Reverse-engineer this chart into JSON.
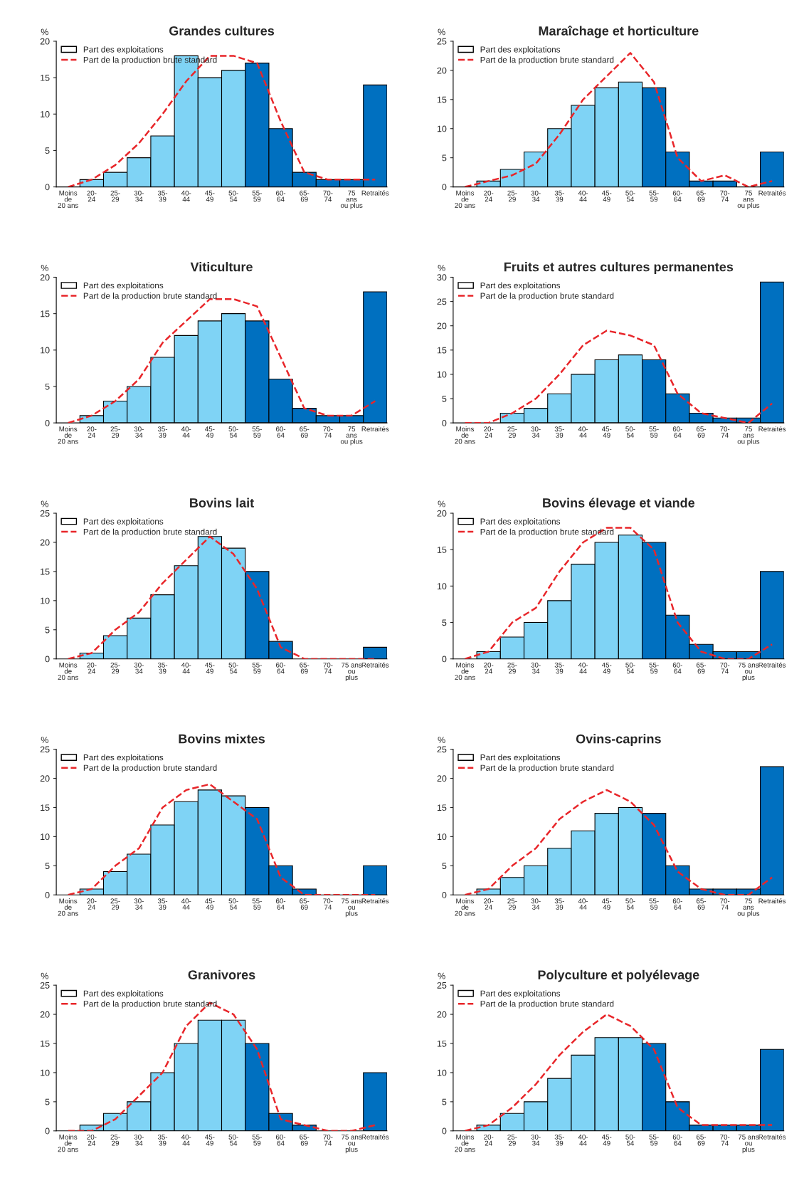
{
  "chart_data": [
    {
      "type": "bar",
      "title": "Grandes cultures",
      "ylabel": "%",
      "ylim": [
        0,
        20
      ],
      "yticks": [
        0,
        5,
        10,
        15,
        20
      ],
      "legend": "top left",
      "grid": false,
      "categories": [
        "Moins\nde\n20 ans",
        "20-\n24",
        "25-\n29",
        "30-\n34",
        "35-\n39",
        "40-\n44",
        "45-\n49",
        "50-\n54",
        "55-\n59",
        "60-\n64",
        "65-\n69",
        "70-\n74",
        "75\nans\nou plus",
        "Retraités"
      ],
      "series": [
        {
          "name": "Part des exploitations",
          "type": "bar",
          "colors": [
            "#7fd3f5",
            "#7fd3f5",
            "#7fd3f5",
            "#7fd3f5",
            "#7fd3f5",
            "#7fd3f5",
            "#7fd3f5",
            "#7fd3f5",
            "#0070c0",
            "#0070c0",
            "#0070c0",
            "#0070c0",
            "#0070c0",
            "#0070c0"
          ],
          "values": [
            0,
            1,
            2,
            4,
            7,
            18,
            15,
            16,
            17,
            8,
            2,
            1,
            1,
            14
          ]
        },
        {
          "name": "Part de la production brute standard",
          "type": "line",
          "color": "#e8262a",
          "line_style": "dashed",
          "values": [
            0,
            1,
            3,
            6,
            10,
            14.5,
            18,
            18,
            17,
            9,
            2,
            1,
            1,
            1
          ]
        }
      ]
    },
    {
      "type": "bar",
      "title": "Maraîchage et horticulture",
      "ylabel": "%",
      "ylim": [
        0,
        25
      ],
      "yticks": [
        0,
        5,
        10,
        15,
        20,
        25
      ],
      "legend": "top left",
      "grid": false,
      "categories": [
        "Moins\nde\n20 ans",
        "20-\n24",
        "25-\n29",
        "30-\n34",
        "35-\n39",
        "40-\n44",
        "45-\n49",
        "50-\n54",
        "55-\n59",
        "60-\n64",
        "65-\n69",
        "70-\n74",
        "75\nans\nou plus",
        "Retraités"
      ],
      "series": [
        {
          "name": "Part des exploitations",
          "type": "bar",
          "colors": [
            "#7fd3f5",
            "#7fd3f5",
            "#7fd3f5",
            "#7fd3f5",
            "#7fd3f5",
            "#7fd3f5",
            "#7fd3f5",
            "#7fd3f5",
            "#0070c0",
            "#0070c0",
            "#0070c0",
            "#0070c0",
            "#0070c0",
            "#0070c0"
          ],
          "values": [
            0,
            1,
            3,
            6,
            10,
            14,
            17,
            18,
            17,
            6,
            1,
            1,
            0,
            6
          ]
        },
        {
          "name": "Part de la production brute standard",
          "type": "line",
          "color": "#e8262a",
          "line_style": "dashed",
          "values": [
            0,
            1,
            2,
            4,
            9,
            15,
            19,
            23,
            18,
            5,
            1,
            2,
            0,
            1
          ]
        }
      ]
    },
    {
      "type": "bar",
      "title": "Viticulture",
      "ylabel": "%",
      "ylim": [
        0,
        20
      ],
      "yticks": [
        0,
        5,
        10,
        15,
        20
      ],
      "legend": "top left",
      "grid": false,
      "categories": [
        "Moins\nde\n20 ans",
        "20-\n24",
        "25-\n29",
        "30-\n34",
        "35-\n39",
        "40-\n44",
        "45-\n49",
        "50-\n54",
        "55-\n59",
        "60-\n64",
        "65-\n69",
        "70-\n74",
        "75\nans\nou plus",
        "Retraités"
      ],
      "series": [
        {
          "name": "Part des exploitations",
          "type": "bar",
          "colors": [
            "#7fd3f5",
            "#7fd3f5",
            "#7fd3f5",
            "#7fd3f5",
            "#7fd3f5",
            "#7fd3f5",
            "#7fd3f5",
            "#7fd3f5",
            "#0070c0",
            "#0070c0",
            "#0070c0",
            "#0070c0",
            "#0070c0",
            "#0070c0"
          ],
          "values": [
            0,
            1,
            3,
            5,
            9,
            12,
            14,
            15,
            14,
            6,
            2,
            1,
            1,
            18
          ]
        },
        {
          "name": "Part de la production brute standard",
          "type": "line",
          "color": "#e8262a",
          "line_style": "dashed",
          "values": [
            0,
            1,
            3,
            6,
            11,
            14,
            17,
            17,
            16,
            9,
            2,
            1,
            1,
            3
          ]
        }
      ]
    },
    {
      "type": "bar",
      "title": "Fruits et autres cultures permanentes",
      "ylabel": "%",
      "ylim": [
        0,
        30
      ],
      "yticks": [
        0,
        5,
        10,
        15,
        20,
        25,
        30
      ],
      "legend": "top left",
      "grid": false,
      "categories": [
        "Moins\nde\n20 ans",
        "20-\n24",
        "25-\n29",
        "30-\n34",
        "35-\n39",
        "40-\n44",
        "45-\n49",
        "50-\n54",
        "55-\n59",
        "60-\n64",
        "65-\n69",
        "70-\n74",
        "75\nans\nou plus",
        "Retraités"
      ],
      "series": [
        {
          "name": "Part des exploitations",
          "type": "bar",
          "colors": [
            "#7fd3f5",
            "#7fd3f5",
            "#7fd3f5",
            "#7fd3f5",
            "#7fd3f5",
            "#7fd3f5",
            "#7fd3f5",
            "#7fd3f5",
            "#0070c0",
            "#0070c0",
            "#0070c0",
            "#0070c0",
            "#0070c0",
            "#0070c0"
          ],
          "values": [
            0,
            0,
            2,
            3,
            6,
            10,
            13,
            14,
            13,
            6,
            2,
            1,
            1,
            29
          ]
        },
        {
          "name": "Part de la production brute standard",
          "type": "line",
          "color": "#e8262a",
          "line_style": "dashed",
          "values": [
            0,
            0,
            2,
            5,
            10,
            16,
            19,
            18,
            16,
            6,
            2,
            1,
            0,
            4
          ]
        }
      ]
    },
    {
      "type": "bar",
      "title": "Bovins lait",
      "ylabel": "%",
      "ylim": [
        0,
        25
      ],
      "yticks": [
        0,
        5,
        10,
        15,
        20,
        25
      ],
      "legend": "top left",
      "grid": false,
      "categories": [
        "Moins\nde\n20 ans",
        "20-\n24",
        "25-\n29",
        "30-\n34",
        "35-\n39",
        "40-\n44",
        "45-\n49",
        "50-\n54",
        "55-\n59",
        "60-\n64",
        "65-\n69",
        "70-\n74",
        "75 ans\nou\nplus",
        "Retraités"
      ],
      "series": [
        {
          "name": "Part des exploitations",
          "type": "bar",
          "colors": [
            "#7fd3f5",
            "#7fd3f5",
            "#7fd3f5",
            "#7fd3f5",
            "#7fd3f5",
            "#7fd3f5",
            "#7fd3f5",
            "#7fd3f5",
            "#0070c0",
            "#0070c0",
            "#0070c0",
            "#0070c0",
            "#0070c0",
            "#0070c0"
          ],
          "values": [
            0,
            1,
            4,
            7,
            11,
            16,
            21,
            19,
            15,
            3,
            0,
            0,
            0,
            2
          ]
        },
        {
          "name": "Part de la production brute standard",
          "type": "line",
          "color": "#e8262a",
          "line_style": "dashed",
          "values": [
            0,
            1,
            5,
            8,
            13,
            17,
            21,
            18,
            12,
            2,
            0,
            0,
            0,
            0
          ]
        }
      ]
    },
    {
      "type": "bar",
      "title": "Bovins élevage et viande",
      "ylabel": "%",
      "ylim": [
        0,
        20
      ],
      "yticks": [
        0,
        5,
        10,
        15,
        20
      ],
      "legend": "top left",
      "grid": false,
      "categories": [
        "Moins\nde\n20 ans",
        "20-\n24",
        "25-\n29",
        "30-\n34",
        "35-\n39",
        "40-\n44",
        "45-\n49",
        "50-\n54",
        "55-\n59",
        "60-\n64",
        "65-\n69",
        "70-\n74",
        "75 ans\nou\nplus",
        "Retraités"
      ],
      "series": [
        {
          "name": "Part des exploitations",
          "type": "bar",
          "colors": [
            "#7fd3f5",
            "#7fd3f5",
            "#7fd3f5",
            "#7fd3f5",
            "#7fd3f5",
            "#7fd3f5",
            "#7fd3f5",
            "#7fd3f5",
            "#0070c0",
            "#0070c0",
            "#0070c0",
            "#0070c0",
            "#0070c0",
            "#0070c0"
          ],
          "values": [
            0,
            1,
            3,
            5,
            8,
            13,
            16,
            17,
            16,
            6,
            2,
            1,
            1,
            12
          ]
        },
        {
          "name": "Part de la production brute standard",
          "type": "line",
          "color": "#e8262a",
          "line_style": "dashed",
          "values": [
            0,
            1,
            5,
            7,
            12,
            16,
            18,
            18,
            15,
            5,
            1,
            0,
            0,
            2
          ]
        }
      ]
    },
    {
      "type": "bar",
      "title": "Bovins mixtes",
      "ylabel": "%",
      "ylim": [
        0,
        25
      ],
      "yticks": [
        0,
        5,
        10,
        15,
        20,
        25
      ],
      "legend": "top left",
      "grid": false,
      "categories": [
        "Moins\nde\n20 ans",
        "20-\n24",
        "25-\n29",
        "30-\n34",
        "35-\n39",
        "40-\n44",
        "45-\n49",
        "50-\n54",
        "55-\n59",
        "60-\n64",
        "65-\n69",
        "70-\n74",
        "75 ans\nou\nplus",
        "Retraités"
      ],
      "series": [
        {
          "name": "Part des exploitations",
          "type": "bar",
          "colors": [
            "#7fd3f5",
            "#7fd3f5",
            "#7fd3f5",
            "#7fd3f5",
            "#7fd3f5",
            "#7fd3f5",
            "#7fd3f5",
            "#7fd3f5",
            "#0070c0",
            "#0070c0",
            "#0070c0",
            "#0070c0",
            "#0070c0",
            "#0070c0"
          ],
          "values": [
            0,
            1,
            4,
            7,
            12,
            16,
            18,
            17,
            15,
            5,
            1,
            0,
            0,
            5
          ]
        },
        {
          "name": "Part de la production brute standard",
          "type": "line",
          "color": "#e8262a",
          "line_style": "dashed",
          "values": [
            0,
            1,
            5,
            8,
            15,
            18,
            19,
            16,
            13,
            3,
            0,
            0,
            0,
            0
          ]
        }
      ]
    },
    {
      "type": "bar",
      "title": "Ovins-caprins",
      "ylabel": "%",
      "ylim": [
        0,
        25
      ],
      "yticks": [
        0,
        5,
        10,
        15,
        20,
        25
      ],
      "legend": "top left",
      "grid": false,
      "categories": [
        "Moins\nde\n20 ans",
        "20-\n24",
        "25-\n29",
        "30-\n34",
        "35-\n39",
        "40-\n44",
        "45-\n49",
        "50-\n54",
        "55-\n59",
        "60-\n64",
        "65-\n69",
        "70-\n74",
        "75\nans\nou plus",
        "Retraités"
      ],
      "series": [
        {
          "name": "Part des exploitations",
          "type": "bar",
          "colors": [
            "#7fd3f5",
            "#7fd3f5",
            "#7fd3f5",
            "#7fd3f5",
            "#7fd3f5",
            "#7fd3f5",
            "#7fd3f5",
            "#7fd3f5",
            "#0070c0",
            "#0070c0",
            "#0070c0",
            "#0070c0",
            "#0070c0",
            "#0070c0"
          ],
          "values": [
            0,
            1,
            3,
            5,
            8,
            11,
            14,
            15,
            14,
            5,
            1,
            1,
            1,
            22
          ]
        },
        {
          "name": "Part de la production brute standard",
          "type": "line",
          "color": "#e8262a",
          "line_style": "dashed",
          "values": [
            0,
            1,
            5,
            8,
            13,
            16,
            18,
            16,
            12,
            4,
            1,
            0,
            0,
            3
          ]
        }
      ]
    },
    {
      "type": "bar",
      "title": "Granivores",
      "ylabel": "%",
      "ylim": [
        0,
        25
      ],
      "yticks": [
        0,
        5,
        10,
        15,
        20,
        25
      ],
      "legend": "top left",
      "grid": false,
      "categories": [
        "Moins\nde\n20 ans",
        "20-\n24",
        "25-\n29",
        "30-\n34",
        "35-\n39",
        "40-\n44",
        "45-\n49",
        "50-\n54",
        "55-\n59",
        "60-\n64",
        "65-\n69",
        "70-\n74",
        "75 ans\nou\nplus",
        "Retraités"
      ],
      "series": [
        {
          "name": "Part des exploitations",
          "type": "bar",
          "colors": [
            "#7fd3f5",
            "#7fd3f5",
            "#7fd3f5",
            "#7fd3f5",
            "#7fd3f5",
            "#7fd3f5",
            "#7fd3f5",
            "#7fd3f5",
            "#0070c0",
            "#0070c0",
            "#0070c0",
            "#0070c0",
            "#0070c0",
            "#0070c0"
          ],
          "values": [
            0,
            1,
            3,
            5,
            10,
            15,
            19,
            19,
            15,
            3,
            1,
            0,
            0,
            10
          ]
        },
        {
          "name": "Part de la production brute standard",
          "type": "line",
          "color": "#e8262a",
          "line_style": "dashed",
          "values": [
            0,
            0,
            2,
            6,
            10,
            18,
            22,
            20,
            14,
            2,
            1,
            0,
            0,
            1
          ]
        }
      ]
    },
    {
      "type": "bar",
      "title": "Polyculture et polyélevage",
      "ylabel": "%",
      "ylim": [
        0,
        25
      ],
      "yticks": [
        0,
        5,
        10,
        15,
        20,
        25
      ],
      "legend": "top left",
      "grid": false,
      "categories": [
        "Moins\nde\n20 ans",
        "20-\n24",
        "25-\n29",
        "30-\n34",
        "35-\n39",
        "40-\n44",
        "45-\n49",
        "50-\n54",
        "55-\n59",
        "60-\n64",
        "65-\n69",
        "70-\n74",
        "75 ans\nou\nplus",
        "Retraités"
      ],
      "series": [
        {
          "name": "Part des exploitations",
          "type": "bar",
          "colors": [
            "#7fd3f5",
            "#7fd3f5",
            "#7fd3f5",
            "#7fd3f5",
            "#7fd3f5",
            "#7fd3f5",
            "#7fd3f5",
            "#7fd3f5",
            "#0070c0",
            "#0070c0",
            "#0070c0",
            "#0070c0",
            "#0070c0",
            "#0070c0"
          ],
          "values": [
            0,
            1,
            3,
            5,
            9,
            13,
            16,
            16,
            15,
            5,
            1,
            1,
            1,
            14
          ]
        },
        {
          "name": "Part de la production brute standard",
          "type": "line",
          "color": "#e8262a",
          "line_style": "dashed",
          "values": [
            0,
            1,
            4,
            8,
            13,
            17,
            20,
            18,
            14,
            4,
            1,
            1,
            1,
            1
          ]
        }
      ]
    }
  ]
}
